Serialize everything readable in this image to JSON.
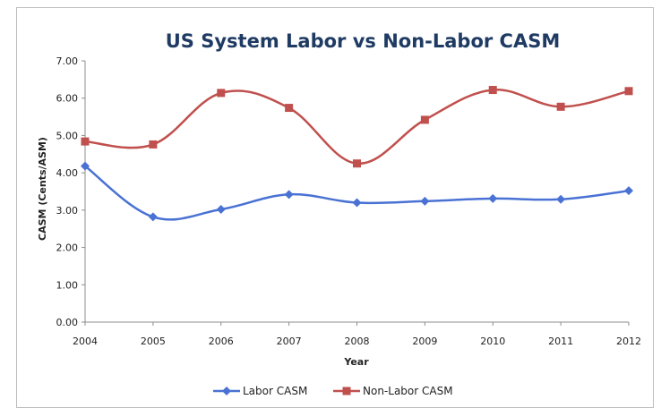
{
  "chart_data": {
    "type": "line",
    "title": "US System Labor vs Non-Labor CASM",
    "xlabel": "Year",
    "ylabel": "CASM (Cents/ASM)",
    "categories": [
      "2004",
      "2005",
      "2006",
      "2007",
      "2008",
      "2009",
      "2010",
      "2011",
      "2012"
    ],
    "ylim": [
      0,
      7
    ],
    "yticks": [
      "0.00",
      "1.00",
      "2.00",
      "3.00",
      "4.00",
      "5.00",
      "6.00",
      "7.00"
    ],
    "grid": false,
    "smooth": true,
    "legend_position": "bottom",
    "series": [
      {
        "name": "Labor CASM",
        "marker": "diamond",
        "color": "#4a72d4",
        "values": [
          4.18,
          2.82,
          3.02,
          3.42,
          3.2,
          3.24,
          3.31,
          3.29,
          3.52
        ]
      },
      {
        "name": "Non-Labor CASM",
        "marker": "square",
        "color": "#c0504d",
        "values": [
          4.84,
          4.76,
          6.14,
          5.74,
          4.25,
          5.42,
          6.22,
          5.77,
          6.19
        ]
      }
    ]
  }
}
